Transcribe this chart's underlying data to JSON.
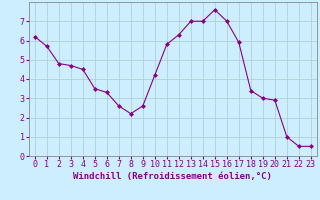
{
  "x": [
    0,
    1,
    2,
    3,
    4,
    5,
    6,
    7,
    8,
    9,
    10,
    11,
    12,
    13,
    14,
    15,
    16,
    17,
    18,
    19,
    20,
    21,
    22,
    23
  ],
  "y": [
    6.2,
    5.7,
    4.8,
    4.7,
    4.5,
    3.5,
    3.3,
    2.6,
    2.2,
    2.6,
    4.2,
    5.8,
    6.3,
    7.0,
    7.0,
    7.6,
    7.0,
    5.9,
    3.4,
    3.0,
    2.9,
    1.0,
    0.5,
    0.5
  ],
  "line_color": "#880088",
  "marker": "D",
  "marker_size": 2.0,
  "bg_color": "#cceeff",
  "grid_color": "#aacccc",
  "xlim": [
    -0.5,
    23.5
  ],
  "ylim": [
    0,
    8
  ],
  "xticks": [
    0,
    1,
    2,
    3,
    4,
    5,
    6,
    7,
    8,
    9,
    10,
    11,
    12,
    13,
    14,
    15,
    16,
    17,
    18,
    19,
    20,
    21,
    22,
    23
  ],
  "yticks": [
    0,
    1,
    2,
    3,
    4,
    5,
    6,
    7
  ],
  "tick_color": "#880088",
  "label_color": "#880088",
  "xlabel": "Windchill (Refroidissement éolien,°C)",
  "xlabel_fontsize": 6.5,
  "tick_fontsize": 6.0
}
